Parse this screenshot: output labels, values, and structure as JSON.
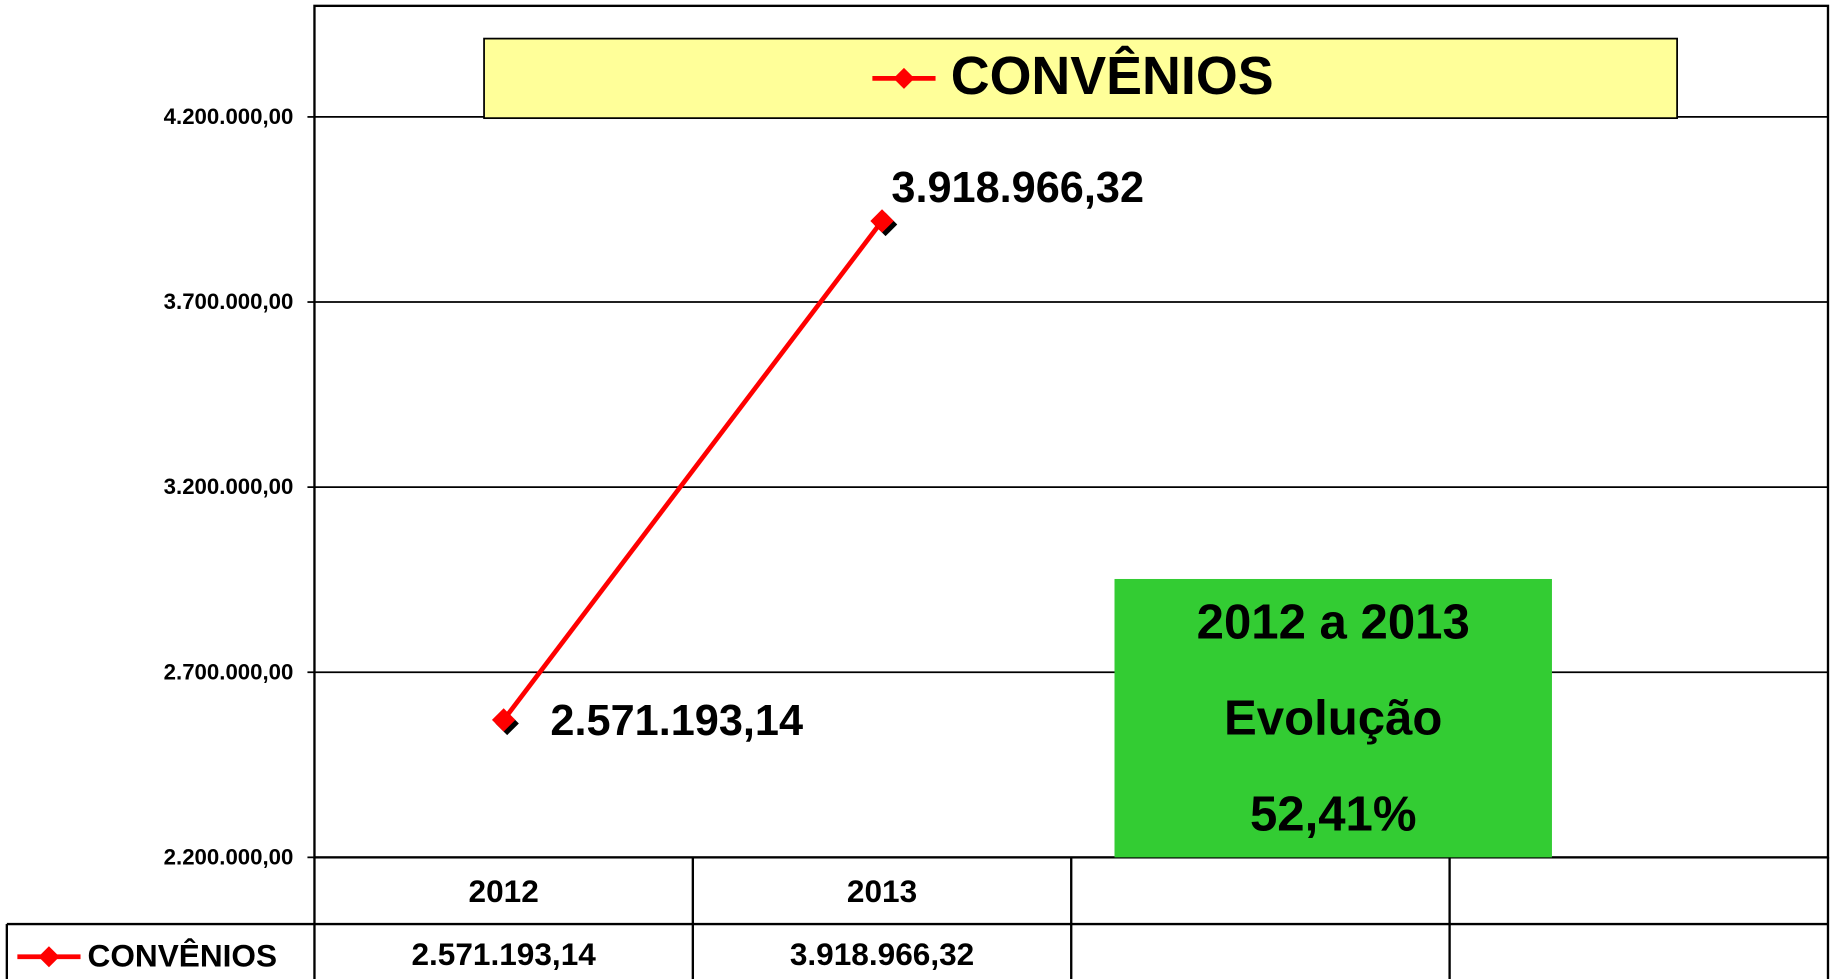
{
  "chart_data": {
    "type": "line",
    "categories": [
      "2012",
      "2013",
      null,
      null
    ],
    "series": [
      {
        "name": "CONVÊNIOS",
        "color": "#ff0000",
        "values": [
          2571193.14,
          3918966.32,
          null,
          null
        ],
        "value_labels": [
          "2.571.193,14",
          "3.918.966,32",
          null,
          null
        ]
      }
    ],
    "ylim": [
      2200000,
      4500000
    ],
    "yticks": [
      {
        "value": 2200000,
        "label": "2.200.000,00"
      },
      {
        "value": 2700000,
        "label": "2.700.000,00"
      },
      {
        "value": 3200000,
        "label": "3.200.000,00"
      },
      {
        "value": 3700000,
        "label": "3.700.000,00"
      },
      {
        "value": 4200000,
        "label": "4.200.000,00"
      }
    ],
    "grid": true,
    "legend": "top",
    "annotation": [
      "2012 a 2013",
      "Evolução",
      "52,41%"
    ]
  }
}
